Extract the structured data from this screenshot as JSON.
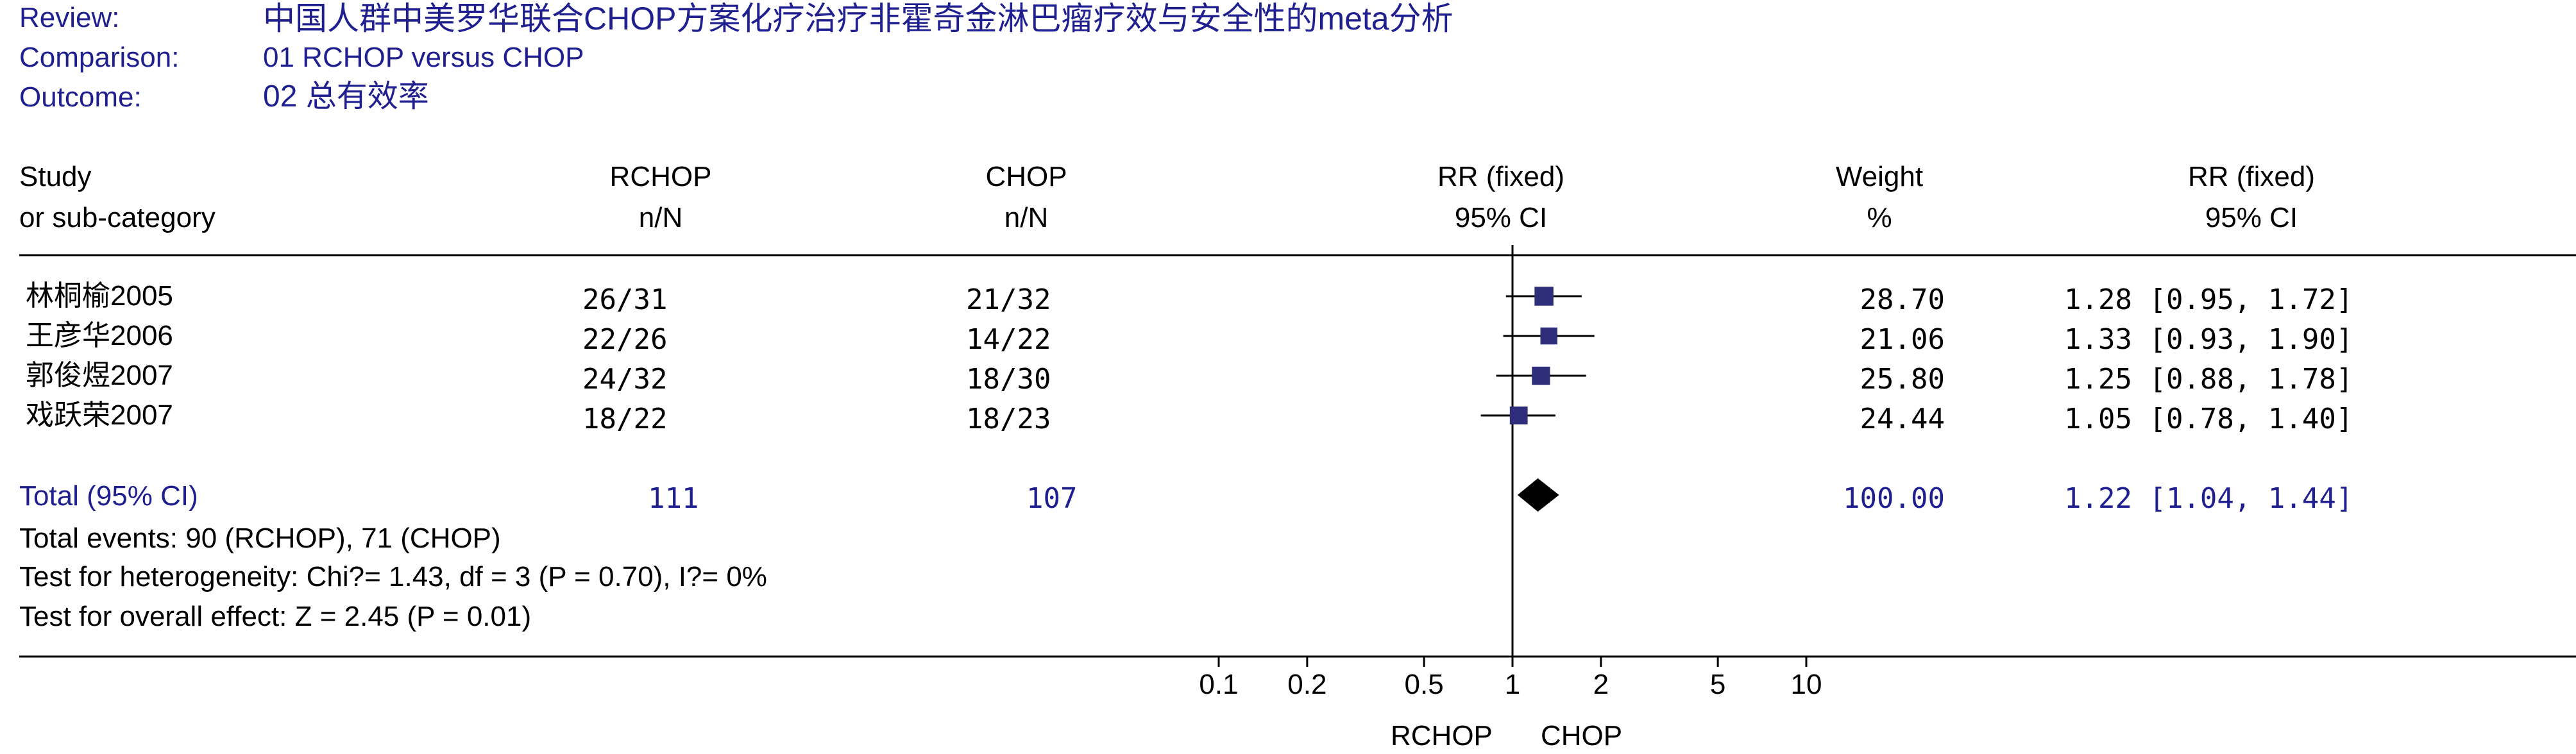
{
  "header": {
    "review_label": "Review:",
    "review_value": "中国人群中美罗华联合CHOP方案化疗治疗非霍奇金淋巴瘤疗效与安全性的meta分析",
    "comparison_label": "Comparison:",
    "comparison_value": "01 RCHOP versus CHOP",
    "outcome_label": "Outcome:",
    "outcome_value": "02 总有效率"
  },
  "columns": {
    "study_line1": "Study",
    "study_line2": "or sub-category",
    "rchop_line1": "RCHOP",
    "rchop_line2": "n/N",
    "chop_line1": "CHOP",
    "chop_line2": "n/N",
    "rr_plot_line1": "RR (fixed)",
    "rr_plot_line2": "95% CI",
    "weight_line1": "Weight",
    "weight_line2": "%",
    "rr_text_line1": "RR (fixed)",
    "rr_text_line2": "95% CI"
  },
  "studies": [
    {
      "name": "林桐榆2005",
      "rchop": "26/31",
      "chop": "21/32",
      "weight": "28.70",
      "rr_text": "1.28 [0.95, 1.72]"
    },
    {
      "name": "王彦华2006",
      "rchop": "22/26",
      "chop": "14/22",
      "weight": "21.06",
      "rr_text": "1.33 [0.93, 1.90]"
    },
    {
      "name": "郭俊煜2007",
      "rchop": "24/32",
      "chop": "18/30",
      "weight": "25.80",
      "rr_text": "1.25 [0.88, 1.78]"
    },
    {
      "name": "戏跃荣2007",
      "rchop": "18/22",
      "chop": "18/23",
      "weight": "24.44",
      "rr_text": "1.05 [0.78, 1.40]"
    }
  ],
  "total": {
    "label": "Total (95% CI)",
    "rchop": "111",
    "chop": "107",
    "weight": "100.00",
    "rr_text": "1.22 [1.04, 1.44]"
  },
  "footnotes": {
    "events": "Total events: 90 (RCHOP), 71 (CHOP)",
    "heterogeneity": "Test for heterogeneity: Chi?= 1.43, df = 3 (P = 0.70), I?= 0%",
    "overall": "Test for overall effect: Z = 2.45 (P = 0.01)"
  },
  "axis": {
    "left_label": "RCHOP",
    "right_label": "CHOP"
  },
  "chart_data": {
    "type": "forest",
    "scale": "log",
    "xlim": [
      0.1,
      10
    ],
    "ticks": [
      0.1,
      0.2,
      0.5,
      1,
      2,
      5,
      10
    ],
    "tick_labels": [
      "0.1",
      "0.2",
      "0.5",
      "1",
      "2",
      "5",
      "10"
    ],
    "reference_line": 1,
    "studies": [
      {
        "name": "林桐榆2005",
        "rr": 1.28,
        "lower": 0.95,
        "upper": 1.72,
        "weight": 28.7
      },
      {
        "name": "王彦华2006",
        "rr": 1.33,
        "lower": 0.93,
        "upper": 1.9,
        "weight": 21.06
      },
      {
        "name": "郭俊煜2007",
        "rr": 1.25,
        "lower": 0.88,
        "upper": 1.78,
        "weight": 25.8
      },
      {
        "name": "戏跃荣2007",
        "rr": 1.05,
        "lower": 0.78,
        "upper": 1.4,
        "weight": 24.44
      }
    ],
    "pooled": {
      "name": "Total (95% CI)",
      "rr": 1.22,
      "lower": 1.04,
      "upper": 1.44
    },
    "colors": {
      "marker": "#2e2e7a",
      "text_accent": "#1f1f8f"
    }
  }
}
